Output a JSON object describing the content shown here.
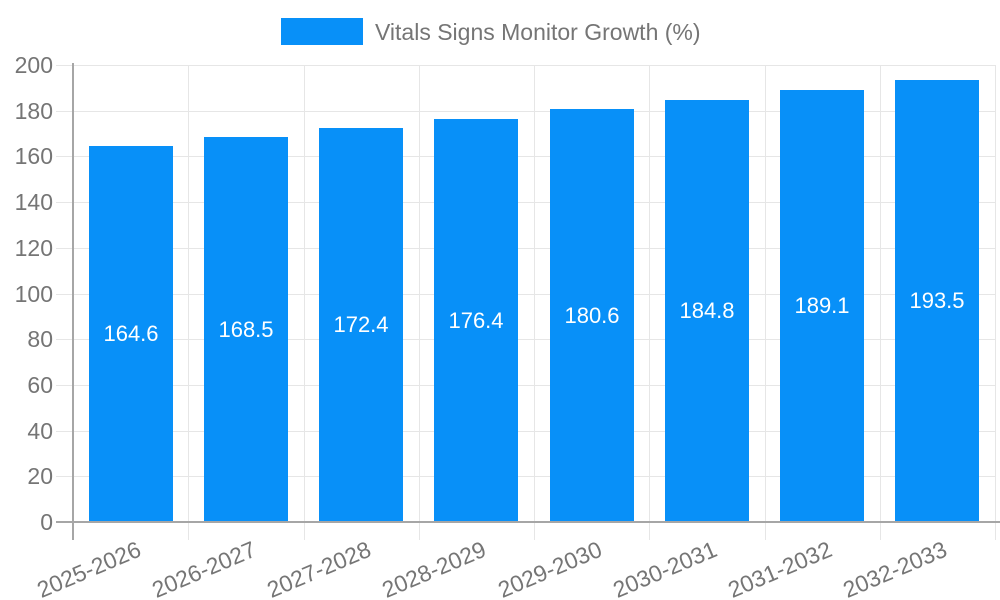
{
  "chart_data": {
    "type": "bar",
    "title": "Vitals Signs Monitor Growth (%)",
    "legend_position": "top",
    "categories": [
      "2025-2026",
      "2026-2027",
      "2027-2028",
      "2028-2029",
      "2029-2030",
      "2030-2031",
      "2031-2032",
      "2032-2033"
    ],
    "values": [
      164.6,
      168.5,
      172.4,
      176.4,
      180.6,
      184.8,
      189.1,
      193.5
    ],
    "value_labels": [
      "164.6",
      "168.5",
      "172.4",
      "176.4",
      "180.6",
      "184.8",
      "189.1",
      "193.5"
    ],
    "xlabel": "",
    "ylabel": "",
    "ylim": [
      0,
      200
    ],
    "yticks": [
      0,
      20,
      40,
      60,
      80,
      100,
      120,
      140,
      160,
      180,
      200
    ],
    "grid": true,
    "colors": {
      "bar": "#0890f8",
      "grid": "#e6e6e6",
      "axis": "#a6a6a6",
      "text": "#757575",
      "value_label": "#ffffff",
      "background": "#ffffff"
    }
  }
}
